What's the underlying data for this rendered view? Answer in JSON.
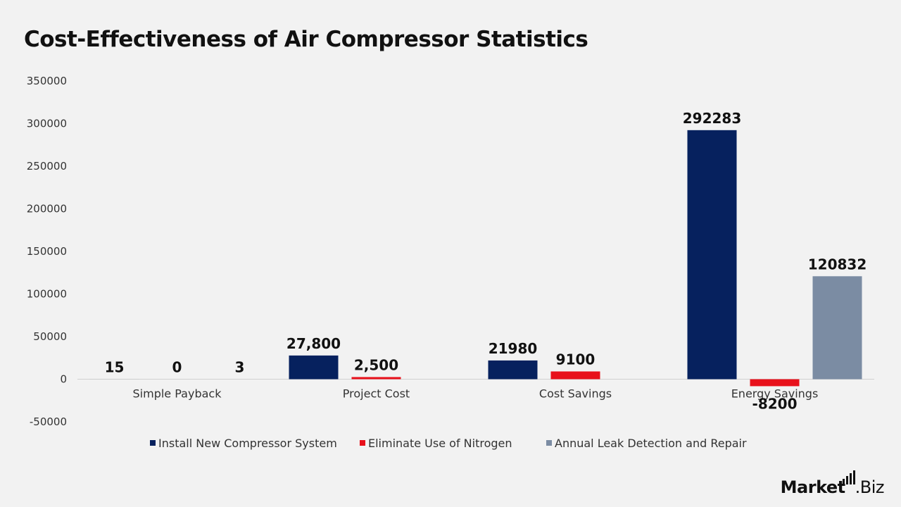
{
  "chart_data": {
    "type": "bar",
    "title": "Cost-Effectiveness of Air Compressor Statistics",
    "categories": [
      "Simple Payback",
      "Project Cost",
      "Cost Savings",
      "Energy Savings"
    ],
    "series": [
      {
        "name": "Install New Compressor System",
        "color": "#06215e",
        "values": [
          15,
          27800,
          21980,
          292283
        ],
        "labels": [
          "15",
          "27,800",
          "21980",
          "292283"
        ]
      },
      {
        "name": "Eliminate Use of Nitrogen",
        "color": "#e8111b",
        "values": [
          0,
          2500,
          9100,
          -8200
        ],
        "labels": [
          "0",
          "2,500",
          "9100",
          "-8200"
        ]
      },
      {
        "name": "Annual Leak Detection and Repair",
        "color": "#7b8ca3",
        "values": [
          3,
          null,
          null,
          120832
        ],
        "labels": [
          "3",
          "",
          "",
          "120832"
        ]
      }
    ],
    "ylim": [
      -50000,
      350000
    ],
    "yticks": [
      -50000,
      0,
      50000,
      100000,
      150000,
      200000,
      250000,
      300000,
      350000
    ],
    "ytick_labels": [
      "-50000",
      "0",
      "50000",
      "100000",
      "150000",
      "200000",
      "250000",
      "300000",
      "350000"
    ],
    "grid": false,
    "legend_position": "bottom"
  },
  "branding": {
    "logo_text_bold": "Market",
    "logo_text_light": ".Biz"
  }
}
